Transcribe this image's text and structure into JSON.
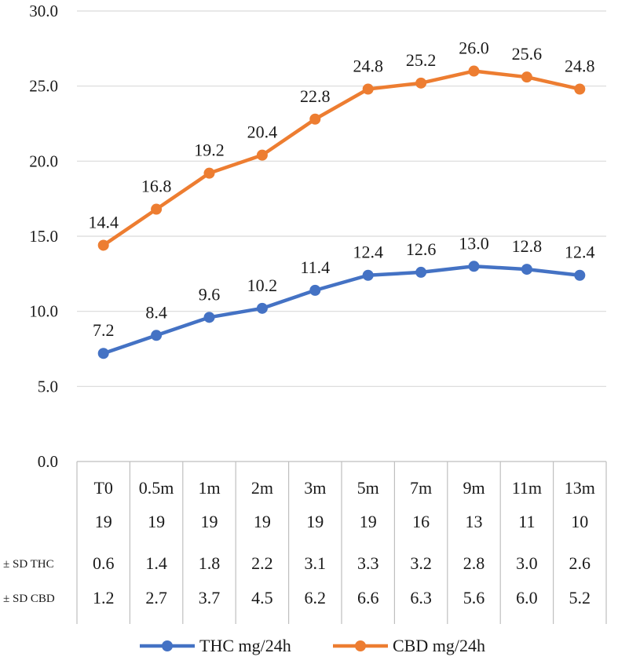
{
  "chart_data": {
    "type": "line",
    "title": "",
    "xlabel": "",
    "ylabel": "",
    "ylim": [
      0,
      30
    ],
    "yticks": [
      "0.0",
      "5.0",
      "10.0",
      "15.0",
      "20.0",
      "25.0",
      "30.0"
    ],
    "grid": true,
    "categories": [
      "T0",
      "0.5m",
      "1m",
      "2m",
      "3m",
      "5m",
      "7m",
      "9m",
      "11m",
      "13m"
    ],
    "series": [
      {
        "name": "THC mg/24h",
        "color": "#4472C4",
        "values": [
          7.2,
          8.4,
          9.6,
          10.2,
          11.4,
          12.4,
          12.6,
          13.0,
          12.8,
          12.4
        ],
        "labels": [
          "7.2",
          "8.4",
          "9.6",
          "10.2",
          "11.4",
          "12.4",
          "12.6",
          "13.0",
          "12.8",
          "12.4"
        ]
      },
      {
        "name": "CBD mg/24h",
        "color": "#ED7D31",
        "values": [
          14.4,
          16.8,
          19.2,
          20.4,
          22.8,
          24.8,
          25.2,
          26.0,
          25.6,
          24.8
        ],
        "labels": [
          "14.4",
          "16.8",
          "19.2",
          "20.4",
          "22.8",
          "24.8",
          "25.2",
          "26.0",
          "25.6",
          "24.8"
        ]
      }
    ],
    "table_rows": [
      {
        "label": "",
        "values": [
          "19",
          "19",
          "19",
          "19",
          "19",
          "19",
          "16",
          "13",
          "11",
          "10"
        ]
      },
      {
        "label": "± SD THC",
        "values": [
          "0.6",
          "1.4",
          "1.8",
          "2.2",
          "3.1",
          "3.3",
          "3.2",
          "2.8",
          "3.0",
          "2.6"
        ]
      },
      {
        "label": "± SD CBD",
        "values": [
          "1.2",
          "2.7",
          "3.7",
          "4.5",
          "6.2",
          "6.6",
          "6.3",
          "5.6",
          "6.0",
          "5.2"
        ]
      }
    ],
    "legend": {
      "position": "bottom",
      "entries": [
        "THC mg/24h",
        "CBD mg/24h"
      ]
    }
  }
}
